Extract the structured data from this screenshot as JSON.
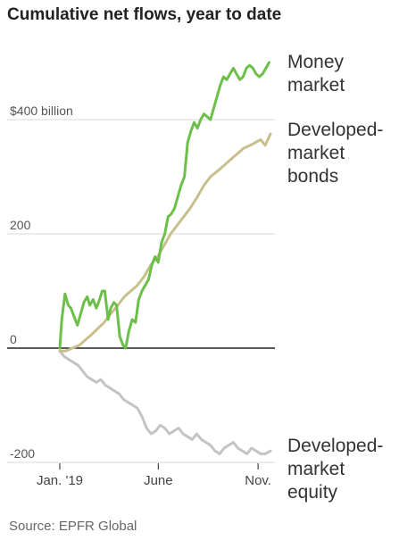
{
  "chart_data": {
    "type": "line",
    "title": "Cumulative net flows, year to date",
    "source": "Source: EPFR Global",
    "xlabel": "",
    "ylabel": "",
    "x_start": "2019-01-01",
    "x_end": "2019-11-20",
    "ylim": [
      -200,
      500
    ],
    "y_ticks": [
      {
        "value": 400,
        "label": "$400 billion"
      },
      {
        "value": 200,
        "label": "200"
      },
      {
        "value": 0,
        "label": "0"
      },
      {
        "value": -200,
        "label": "-200"
      }
    ],
    "x_ticks": [
      {
        "x": "2019-01-01",
        "label": "Jan. '19"
      },
      {
        "x": "2019-06-01",
        "label": "June"
      },
      {
        "x": "2019-11-01",
        "label": "Nov."
      }
    ],
    "grid": true,
    "series": [
      {
        "name": "Money market",
        "label_lines": [
          "Money",
          "market"
        ],
        "color": "#6cc04a",
        "points": [
          [
            "2019-01-01",
            0
          ],
          [
            "2019-01-04",
            50
          ],
          [
            "2019-01-09",
            95
          ],
          [
            "2019-01-14",
            75
          ],
          [
            "2019-01-18",
            70
          ],
          [
            "2019-01-23",
            55
          ],
          [
            "2019-01-28",
            40
          ],
          [
            "2019-02-02",
            60
          ],
          [
            "2019-02-07",
            80
          ],
          [
            "2019-02-12",
            90
          ],
          [
            "2019-02-16",
            75
          ],
          [
            "2019-02-21",
            85
          ],
          [
            "2019-02-26",
            70
          ],
          [
            "2019-03-03",
            85
          ],
          [
            "2019-03-07",
            100
          ],
          [
            "2019-03-11",
            100
          ],
          [
            "2019-03-16",
            50
          ],
          [
            "2019-03-20",
            70
          ],
          [
            "2019-03-25",
            80
          ],
          [
            "2019-03-29",
            75
          ],
          [
            "2019-04-03",
            20
          ],
          [
            "2019-04-08",
            5
          ],
          [
            "2019-04-12",
            0
          ],
          [
            "2019-04-17",
            30
          ],
          [
            "2019-04-22",
            50
          ],
          [
            "2019-04-27",
            45
          ],
          [
            "2019-05-02",
            85
          ],
          [
            "2019-05-07",
            100
          ],
          [
            "2019-05-12",
            110
          ],
          [
            "2019-05-17",
            120
          ],
          [
            "2019-05-22",
            145
          ],
          [
            "2019-05-27",
            160
          ],
          [
            "2019-06-01",
            150
          ],
          [
            "2019-06-06",
            185
          ],
          [
            "2019-06-11",
            200
          ],
          [
            "2019-06-16",
            230
          ],
          [
            "2019-06-21",
            235
          ],
          [
            "2019-06-26",
            245
          ],
          [
            "2019-07-01",
            265
          ],
          [
            "2019-07-06",
            285
          ],
          [
            "2019-07-11",
            300
          ],
          [
            "2019-07-16",
            360
          ],
          [
            "2019-07-21",
            380
          ],
          [
            "2019-07-26",
            395
          ],
          [
            "2019-07-31",
            385
          ],
          [
            "2019-08-05",
            400
          ],
          [
            "2019-08-10",
            410
          ],
          [
            "2019-08-15",
            405
          ],
          [
            "2019-08-20",
            400
          ],
          [
            "2019-08-25",
            420
          ],
          [
            "2019-08-30",
            440
          ],
          [
            "2019-09-04",
            460
          ],
          [
            "2019-09-09",
            475
          ],
          [
            "2019-09-14",
            470
          ],
          [
            "2019-09-19",
            480
          ],
          [
            "2019-09-24",
            490
          ],
          [
            "2019-09-29",
            480
          ],
          [
            "2019-10-04",
            470
          ],
          [
            "2019-10-09",
            475
          ],
          [
            "2019-10-14",
            490
          ],
          [
            "2019-10-19",
            495
          ],
          [
            "2019-10-24",
            490
          ],
          [
            "2019-10-29",
            480
          ],
          [
            "2019-11-03",
            475
          ],
          [
            "2019-11-08",
            480
          ],
          [
            "2019-11-13",
            490
          ],
          [
            "2019-11-18",
            500
          ]
        ]
      },
      {
        "name": "Developed-market bonds",
        "label_lines": [
          "Developed-",
          "market",
          "bonds"
        ],
        "color": "#c8bf8c",
        "points": [
          [
            "2019-01-01",
            -5
          ],
          [
            "2019-01-10",
            -5
          ],
          [
            "2019-01-20",
            0
          ],
          [
            "2019-01-31",
            5
          ],
          [
            "2019-02-10",
            15
          ],
          [
            "2019-02-20",
            25
          ],
          [
            "2019-03-01",
            35
          ],
          [
            "2019-03-10",
            45
          ],
          [
            "2019-03-20",
            60
          ],
          [
            "2019-03-31",
            75
          ],
          [
            "2019-04-10",
            90
          ],
          [
            "2019-04-20",
            100
          ],
          [
            "2019-04-30",
            110
          ],
          [
            "2019-05-10",
            125
          ],
          [
            "2019-05-20",
            145
          ],
          [
            "2019-05-31",
            160
          ],
          [
            "2019-06-10",
            180
          ],
          [
            "2019-06-20",
            200
          ],
          [
            "2019-06-30",
            215
          ],
          [
            "2019-07-10",
            230
          ],
          [
            "2019-07-20",
            245
          ],
          [
            "2019-07-31",
            265
          ],
          [
            "2019-08-10",
            285
          ],
          [
            "2019-08-20",
            300
          ],
          [
            "2019-08-31",
            310
          ],
          [
            "2019-09-10",
            320
          ],
          [
            "2019-09-20",
            330
          ],
          [
            "2019-09-30",
            340
          ],
          [
            "2019-10-10",
            350
          ],
          [
            "2019-10-20",
            355
          ],
          [
            "2019-10-28",
            360
          ],
          [
            "2019-11-05",
            365
          ],
          [
            "2019-11-12",
            355
          ],
          [
            "2019-11-20",
            375
          ]
        ]
      },
      {
        "name": "Developed-market equity",
        "label_lines": [
          "Developed-",
          "market",
          "equity"
        ],
        "color": "#c4c4c4",
        "points": [
          [
            "2019-01-01",
            -5
          ],
          [
            "2019-01-08",
            -15
          ],
          [
            "2019-01-15",
            -20
          ],
          [
            "2019-01-22",
            -25
          ],
          [
            "2019-01-29",
            -30
          ],
          [
            "2019-02-05",
            -40
          ],
          [
            "2019-02-12",
            -50
          ],
          [
            "2019-02-19",
            -55
          ],
          [
            "2019-02-26",
            -60
          ],
          [
            "2019-03-05",
            -55
          ],
          [
            "2019-03-12",
            -65
          ],
          [
            "2019-03-19",
            -70
          ],
          [
            "2019-03-26",
            -75
          ],
          [
            "2019-04-02",
            -80
          ],
          [
            "2019-04-09",
            -90
          ],
          [
            "2019-04-16",
            -95
          ],
          [
            "2019-04-23",
            -100
          ],
          [
            "2019-04-30",
            -105
          ],
          [
            "2019-05-07",
            -120
          ],
          [
            "2019-05-14",
            -140
          ],
          [
            "2019-05-21",
            -150
          ],
          [
            "2019-05-28",
            -145
          ],
          [
            "2019-06-04",
            -135
          ],
          [
            "2019-06-11",
            -140
          ],
          [
            "2019-06-18",
            -150
          ],
          [
            "2019-06-25",
            -145
          ],
          [
            "2019-07-02",
            -140
          ],
          [
            "2019-07-09",
            -150
          ],
          [
            "2019-07-16",
            -155
          ],
          [
            "2019-07-23",
            -160
          ],
          [
            "2019-07-30",
            -150
          ],
          [
            "2019-08-06",
            -160
          ],
          [
            "2019-08-13",
            -165
          ],
          [
            "2019-08-20",
            -170
          ],
          [
            "2019-08-27",
            -180
          ],
          [
            "2019-09-03",
            -185
          ],
          [
            "2019-09-10",
            -175
          ],
          [
            "2019-09-17",
            -170
          ],
          [
            "2019-09-24",
            -165
          ],
          [
            "2019-10-01",
            -175
          ],
          [
            "2019-10-08",
            -180
          ],
          [
            "2019-10-15",
            -185
          ],
          [
            "2019-10-22",
            -175
          ],
          [
            "2019-10-29",
            -180
          ],
          [
            "2019-11-05",
            -185
          ],
          [
            "2019-11-12",
            -185
          ],
          [
            "2019-11-20",
            -180
          ]
        ]
      }
    ]
  }
}
